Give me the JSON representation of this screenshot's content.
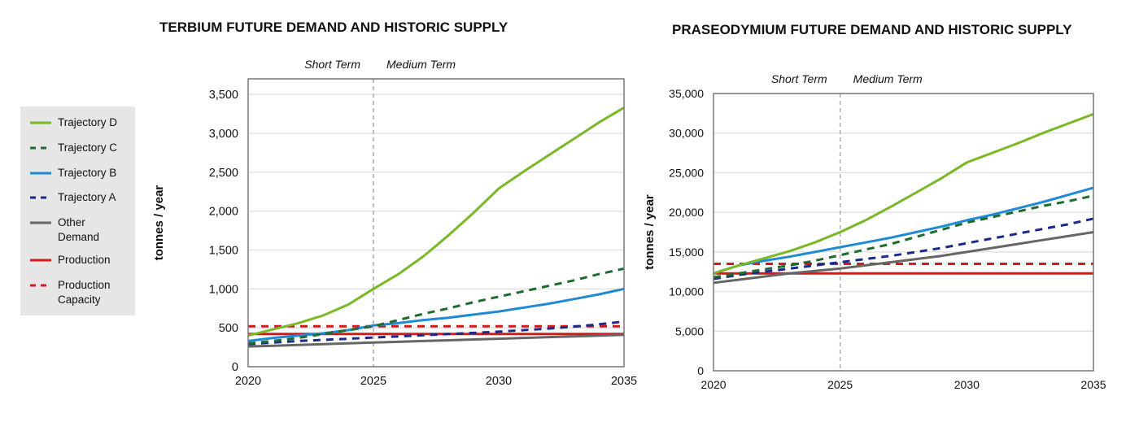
{
  "legend": {
    "items": [
      {
        "label": "Trajectory D",
        "color": "#7ab828",
        "dash": false
      },
      {
        "label": "Trajectory C",
        "color": "#1e6b2e",
        "dash": true
      },
      {
        "label": "Trajectory B",
        "color": "#1f8ad6",
        "dash": false
      },
      {
        "label": "Trajectory A",
        "color": "#1a2a8c",
        "dash": true
      },
      {
        "label": "Other Demand",
        "color": "#666666",
        "dash": false
      },
      {
        "label": "Production",
        "color": "#d7191c",
        "dash": false
      },
      {
        "label": "Production Capacity",
        "color": "#d7191c",
        "dash": true
      }
    ]
  },
  "chart_data": [
    {
      "type": "line",
      "title": "TERBIUM FUTURE DEMAND AND HISTORIC SUPPLY",
      "xlabel": "",
      "ylabel": "tonnes / year",
      "xlim": [
        2020,
        2035
      ],
      "ylim": [
        0,
        3700
      ],
      "xticks": [
        2020,
        2025,
        2030,
        2035
      ],
      "xtick_labels": [
        "2020",
        "2025",
        "2030",
        "2035"
      ],
      "yticks": [
        0,
        500,
        1000,
        1500,
        2000,
        2500,
        3000,
        3500
      ],
      "ytick_labels": [
        "0",
        "500",
        "1,000",
        "1,500",
        "2,000",
        "2,500",
        "3,000",
        "3,500"
      ],
      "grid": true,
      "annotations": [
        {
          "text": "Short Term",
          "position": "left of divider"
        },
        {
          "text": "Medium Term",
          "position": "right of divider"
        }
      ],
      "divider_x": 2025,
      "x": [
        2020,
        2021,
        2022,
        2023,
        2024,
        2025,
        2026,
        2027,
        2028,
        2029,
        2030,
        2031,
        2032,
        2033,
        2034,
        2035
      ],
      "series": [
        {
          "name": "Trajectory D",
          "values": [
            400,
            480,
            560,
            660,
            800,
            1000,
            1190,
            1420,
            1690,
            1980,
            2290,
            2510,
            2720,
            2930,
            3140,
            3330
          ]
        },
        {
          "name": "Trajectory C",
          "values": [
            300,
            330,
            370,
            420,
            470,
            520,
            600,
            680,
            750,
            830,
            900,
            970,
            1040,
            1110,
            1190,
            1260
          ]
        },
        {
          "name": "Trajectory B",
          "values": [
            330,
            370,
            400,
            430,
            470,
            530,
            560,
            600,
            630,
            670,
            710,
            760,
            810,
            870,
            930,
            1000
          ]
        },
        {
          "name": "Trajectory A",
          "values": [
            290,
            310,
            330,
            345,
            360,
            375,
            390,
            405,
            420,
            435,
            450,
            470,
            490,
            515,
            545,
            580
          ]
        },
        {
          "name": "Other Demand",
          "values": [
            260,
            270,
            280,
            290,
            300,
            310,
            320,
            330,
            340,
            350,
            360,
            370,
            380,
            390,
            400,
            410
          ]
        },
        {
          "name": "Production",
          "values": [
            420,
            420,
            420,
            420,
            420,
            420,
            420,
            420,
            420,
            420,
            420,
            420,
            420,
            420,
            420,
            420
          ]
        },
        {
          "name": "Production Capacity",
          "values": [
            520,
            520,
            520,
            520,
            520,
            520,
            520,
            520,
            520,
            520,
            520,
            520,
            520,
            520,
            520,
            520
          ]
        }
      ]
    },
    {
      "type": "line",
      "title": "PRASEODYMIUM FUTURE DEMAND AND HISTORIC SUPPLY",
      "xlabel": "",
      "ylabel": "tonnes / year",
      "xlim": [
        2020,
        2035
      ],
      "ylim": [
        0,
        35000
      ],
      "xticks": [
        2020,
        2025,
        2030,
        2035
      ],
      "xtick_labels": [
        "2020",
        "2025",
        "2030",
        "2035"
      ],
      "yticks": [
        0,
        5000,
        10000,
        15000,
        20000,
        25000,
        30000,
        35000
      ],
      "ytick_labels": [
        "0",
        "5,000",
        "10,000",
        "15,000",
        "20,000",
        "25,000",
        "30,000",
        "35,000"
      ],
      "grid": true,
      "annotations": [
        {
          "text": "Short Term",
          "position": "left of divider"
        },
        {
          "text": "Medium Term",
          "position": "right of divider"
        }
      ],
      "divider_x": 2025,
      "x": [
        2020,
        2021,
        2022,
        2023,
        2024,
        2025,
        2026,
        2027,
        2028,
        2029,
        2030,
        2031,
        2032,
        2033,
        2034,
        2035
      ],
      "series": [
        {
          "name": "Trajectory D",
          "values": [
            12300,
            13300,
            14200,
            15100,
            16200,
            17500,
            19000,
            20700,
            22500,
            24300,
            26300,
            27500,
            28700,
            30000,
            31200,
            32400
          ]
        },
        {
          "name": "Trajectory C",
          "values": [
            11800,
            12300,
            12800,
            13300,
            13900,
            14600,
            15300,
            16000,
            16900,
            17800,
            18700,
            19400,
            20100,
            20800,
            21400,
            22100
          ]
        },
        {
          "name": "Trajectory B",
          "values": [
            12300,
            13300,
            13900,
            14400,
            15000,
            15600,
            16200,
            16800,
            17500,
            18200,
            19000,
            19700,
            20500,
            21300,
            22200,
            23100
          ]
        },
        {
          "name": "Trajectory A",
          "values": [
            11600,
            12100,
            12500,
            12900,
            13300,
            13700,
            14100,
            14500,
            15000,
            15500,
            16100,
            16700,
            17300,
            17900,
            18500,
            19200
          ]
        },
        {
          "name": "Other Demand",
          "values": [
            11100,
            11500,
            11900,
            12300,
            12600,
            12900,
            13300,
            13700,
            14100,
            14500,
            15000,
            15500,
            16000,
            16500,
            17000,
            17500
          ]
        },
        {
          "name": "Production",
          "values": [
            12300,
            12300,
            12300,
            12300,
            12300,
            12300,
            12300,
            12300,
            12300,
            12300,
            12300,
            12300,
            12300,
            12300,
            12300,
            12300
          ]
        },
        {
          "name": "Production Capacity",
          "values": [
            13500,
            13500,
            13500,
            13500,
            13500,
            13500,
            13500,
            13500,
            13500,
            13500,
            13500,
            13500,
            13500,
            13500,
            13500,
            13500
          ]
        }
      ]
    }
  ]
}
